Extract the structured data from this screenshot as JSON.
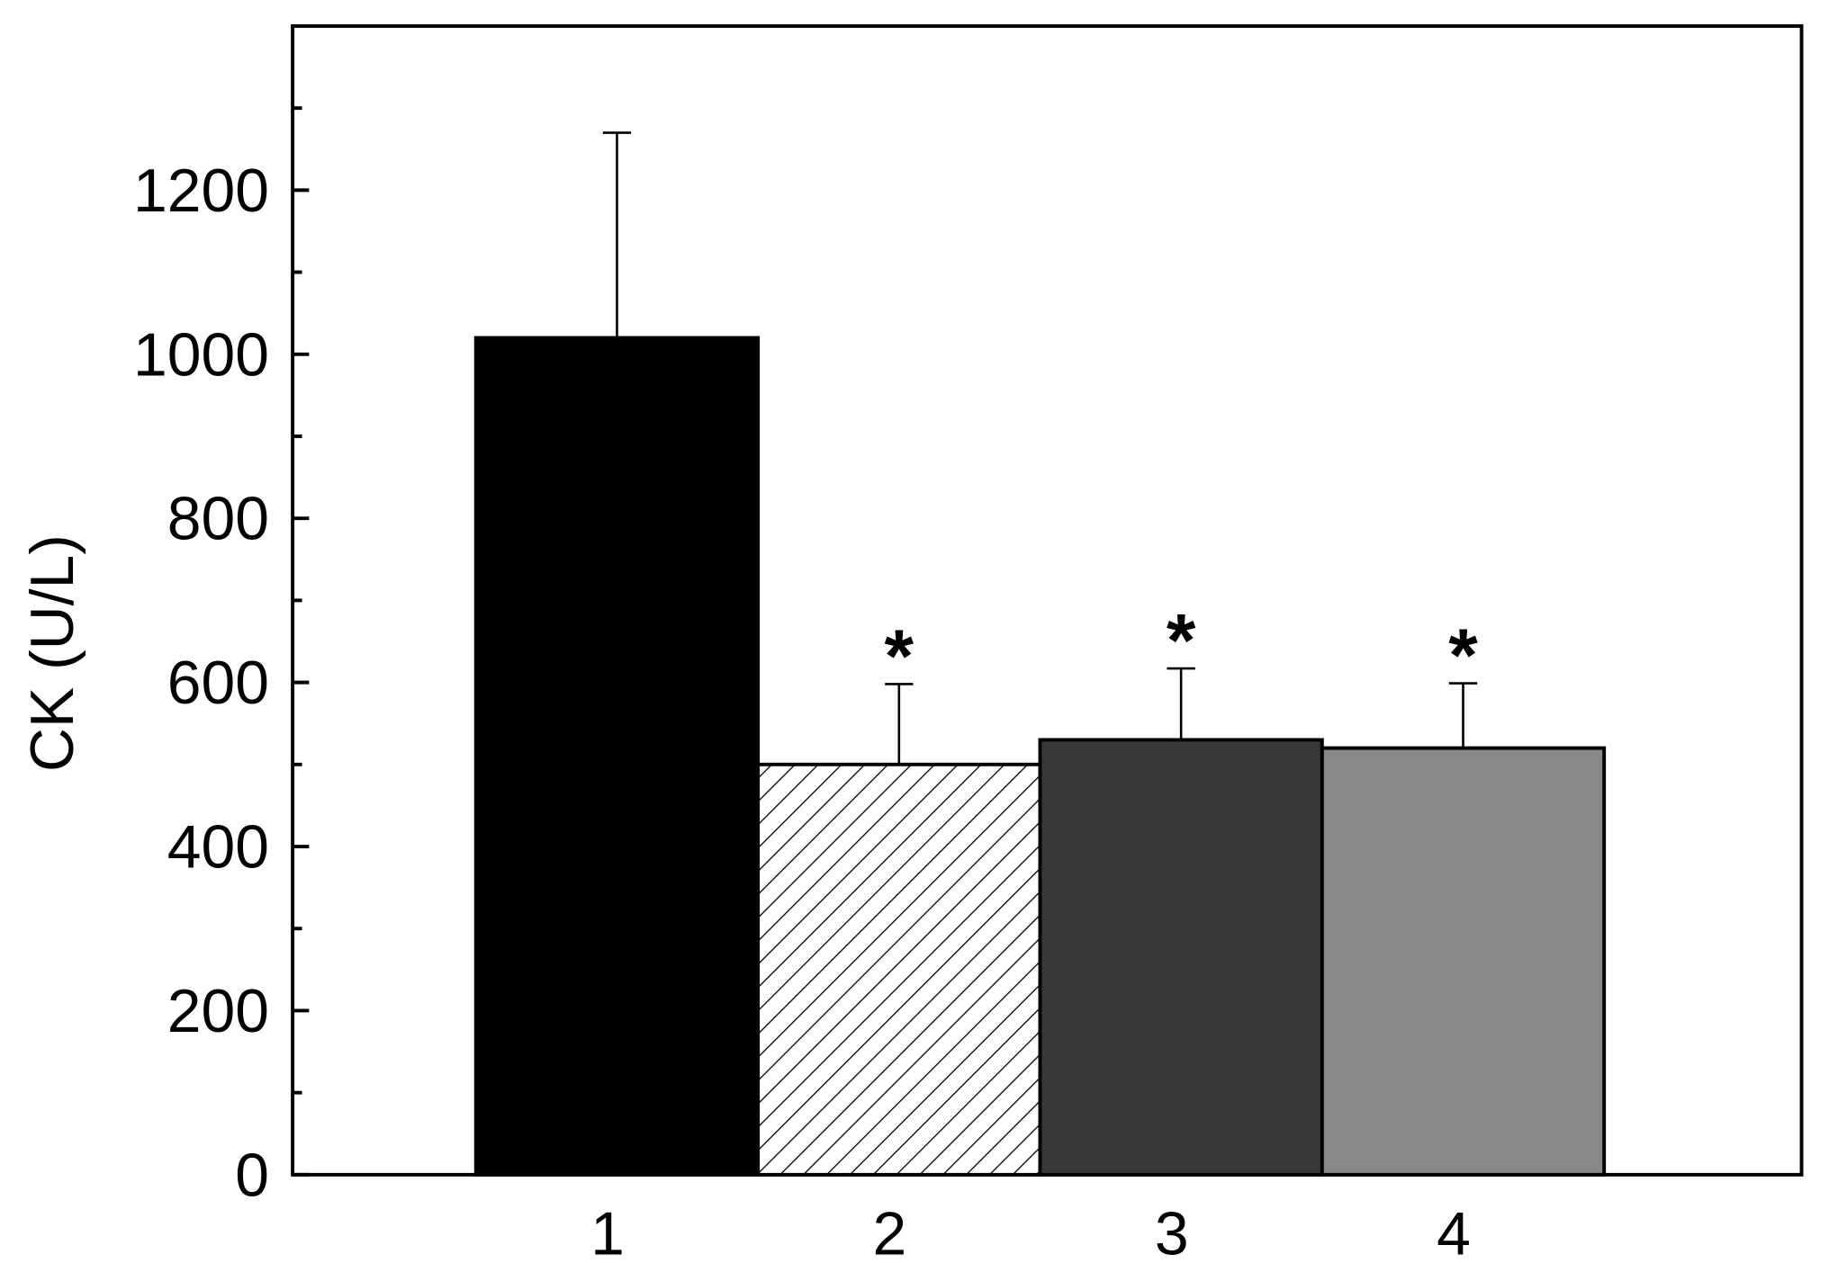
{
  "chart_data": {
    "type": "bar",
    "y_label": "CK (U/L)",
    "categories": [
      "1",
      "2",
      "3",
      "4"
    ],
    "values": [
      1020,
      500,
      530,
      520
    ],
    "errors": [
      250,
      98,
      87,
      79
    ],
    "colors": [
      "#000000",
      "hatch",
      "#383838",
      "#888888"
    ],
    "annotations": [
      null,
      "*",
      "*",
      "*"
    ],
    "ylim": [
      0,
      1400
    ],
    "yticks": [
      0,
      200,
      400,
      600,
      800,
      1000,
      1200
    ],
    "yminor_ticks": [
      100,
      300,
      500,
      700,
      900,
      1100,
      1300
    ]
  }
}
